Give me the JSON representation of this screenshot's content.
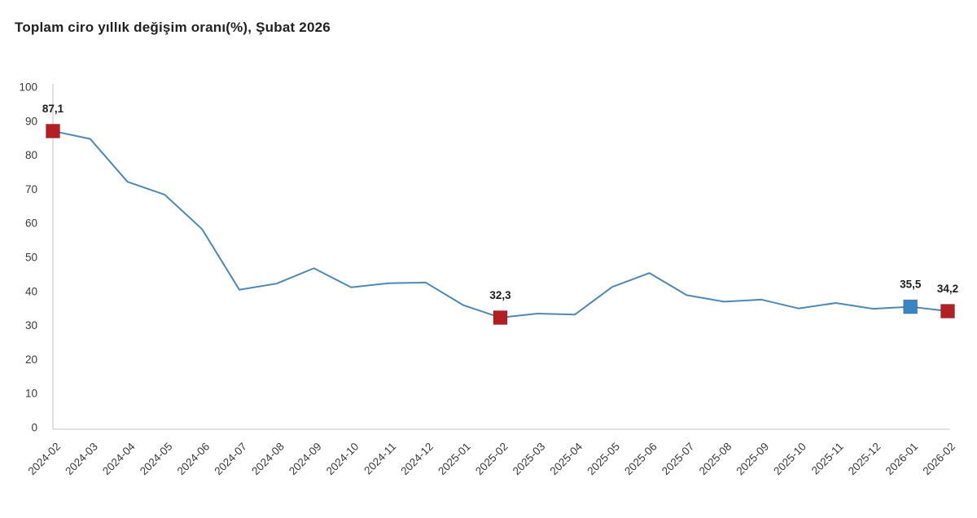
{
  "header": {
    "title": "Toplam ciro yıllık değişim oranı(%), Şubat 2026"
  },
  "chart_data": {
    "type": "line",
    "title": "Toplam ciro yıllık değişim oranı(%), Şubat 2026",
    "xlabel": "",
    "ylabel": "",
    "ylim": [
      0,
      100
    ],
    "yticks": [
      0,
      10,
      20,
      30,
      40,
      50,
      60,
      70,
      80,
      90,
      100
    ],
    "grid": false,
    "legend": "none",
    "categories": [
      "2024-02",
      "2024-03",
      "2024-04",
      "2024-05",
      "2024-06",
      "2024-07",
      "2024-08",
      "2024-09",
      "2024-10",
      "2024-11",
      "2024-12",
      "2025-01",
      "2025-02",
      "2025-03",
      "2025-04",
      "2025-05",
      "2025-06",
      "2025-07",
      "2025-08",
      "2025-09",
      "2025-10",
      "2025-11",
      "2025-12",
      "2026-01",
      "2026-02"
    ],
    "values": [
      87.1,
      84.8,
      72.2,
      68.4,
      58.3,
      40.5,
      42.3,
      46.8,
      41.2,
      42.4,
      42.6,
      36.0,
      32.3,
      33.5,
      33.2,
      41.3,
      45.4,
      38.9,
      37.0,
      37.6,
      35.0,
      36.6,
      34.9,
      35.5,
      34.2
    ],
    "line_color": "#4f88b2",
    "axis_color": "#d9d9d9",
    "tick_label_color": "#3a3a3a",
    "data_label_color": "#1c1c1c",
    "highlights": [
      {
        "index": 0,
        "category": "2024-02",
        "value": 87.1,
        "label": "87,1",
        "color": "#b41f23"
      },
      {
        "index": 12,
        "category": "2025-02",
        "value": 32.3,
        "label": "32,3",
        "color": "#b41f23"
      },
      {
        "index": 23,
        "category": "2026-01",
        "value": 35.5,
        "label": "35,5",
        "color": "#3b84c4"
      },
      {
        "index": 24,
        "category": "2026-02",
        "value": 34.2,
        "label": "34,2",
        "color": "#b41f23"
      }
    ]
  }
}
